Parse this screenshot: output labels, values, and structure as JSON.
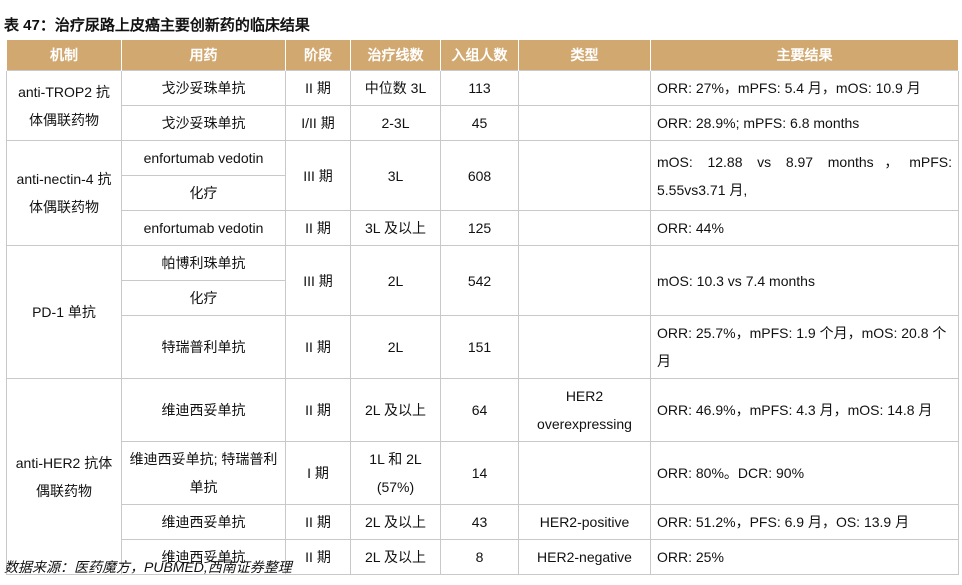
{
  "title": "表 47：治疗尿路上皮癌主要创新药的临床结果",
  "headers": [
    "机制",
    "用药",
    "阶段",
    "治疗线数",
    "入组人数",
    "类型",
    "主要结果"
  ],
  "rows": {
    "r1": {
      "mech": "anti-TROP2 抗体偶联药物",
      "drug": "戈沙妥珠单抗",
      "phase": "II 期",
      "line": "中位数 3L",
      "n": "113",
      "type": "",
      "result": "ORR: 27%，mPFS: 5.4 月，mOS: 10.9 月"
    },
    "r2": {
      "drug": "戈沙妥珠单抗",
      "phase": "I/II 期",
      "line": "2-3L",
      "n": "45",
      "type": "",
      "result": "ORR: 28.9%; mPFS: 6.8 months"
    },
    "r3": {
      "mech": "anti-nectin-4 抗体偶联药物",
      "drug": "enfortumab vedotin",
      "phase": "III 期",
      "line": "3L",
      "n": "608",
      "type": "",
      "result": "mOS: 12.88 vs 8.97 months，mPFS: 5.55vs3.71 月,"
    },
    "r4": {
      "drug": "化疗"
    },
    "r5": {
      "drug": "enfortumab vedotin",
      "phase": "II 期",
      "line": "3L 及以上",
      "n": "125",
      "type": "",
      "result": "ORR: 44%"
    },
    "r6": {
      "mech": "PD-1 单抗",
      "drug": "帕博利珠单抗",
      "phase": "III 期",
      "line": "2L",
      "n": "542",
      "type": "",
      "result": "mOS: 10.3 vs 7.4 months"
    },
    "r7": {
      "drug": "化疗"
    },
    "r8": {
      "drug": "特瑞普利单抗",
      "phase": "II 期",
      "line": "2L",
      "n": "151",
      "type": "",
      "result": "ORR: 25.7%，mPFS: 1.9 个月，mOS: 20.8 个月"
    },
    "r9": {
      "mech": "anti-HER2 抗体偶联药物",
      "drug": "维迪西妥单抗",
      "phase": "II 期",
      "line": "2L 及以上",
      "n": "64",
      "type": "HER2 overexpressing",
      "result": "ORR: 46.9%，mPFS: 4.3 月，mOS: 14.8 月"
    },
    "r10": {
      "drug": "维迪西妥单抗; 特瑞普利单抗",
      "phase": "I 期",
      "line": "1L 和 2L (57%)",
      "n": "14",
      "type": "",
      "result": "ORR: 80%。DCR: 90%"
    },
    "r11": {
      "drug": "维迪西妥单抗",
      "phase": "II 期",
      "line": "2L 及以上",
      "n": "43",
      "type": "HER2-positive",
      "result": "ORR: 51.2%，PFS: 6.9 月，OS: 13.9 月"
    },
    "r12": {
      "drug": "维迪西妥单抗",
      "phase": "II 期",
      "line": "2L 及以上",
      "n": "8",
      "type": "HER2-negative",
      "result": "ORR: 25%"
    }
  },
  "source": "数据来源：医药魔方，PUBMED,西南证券整理",
  "colors": {
    "header_bg": "#d2a871",
    "border": "#c9c9c9"
  }
}
